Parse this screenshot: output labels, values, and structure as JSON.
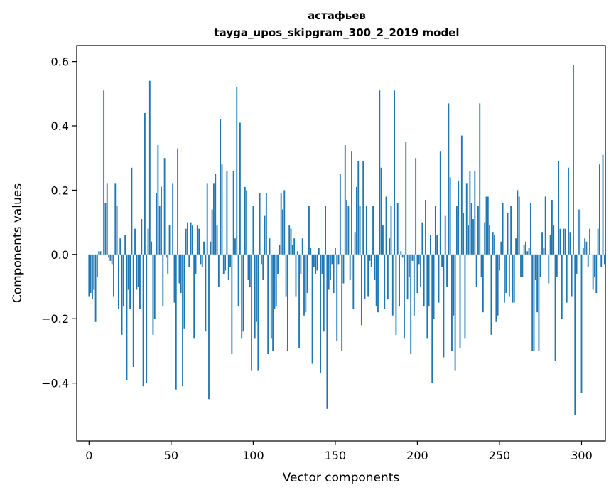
{
  "chart_data": {
    "type": "bar",
    "title": [
      "астафьев",
      "tayga_upos_skipgram_300_2_2019 model"
    ],
    "xlabel": "Vector components",
    "ylabel": "Components values",
    "xlim": [
      -7.5,
      314.5
    ],
    "ylim": [
      -0.58,
      0.65
    ],
    "xticks": [
      0,
      50,
      100,
      150,
      200,
      250,
      300
    ],
    "xtick_labels": [
      "0",
      "50",
      "100",
      "150",
      "200",
      "250",
      "300"
    ],
    "yticks": [
      -0.4,
      -0.2,
      0.0,
      0.2,
      0.4,
      0.6
    ],
    "ytick_labels": [
      "−0.4",
      "−0.2",
      "0.0",
      "0.2",
      "0.4",
      "0.6"
    ],
    "bar_color": "#1f77b4",
    "grid": false,
    "values": [
      -0.13,
      -0.12,
      -0.14,
      -0.11,
      -0.21,
      -0.07,
      0.01,
      0.01,
      0.0,
      0.51,
      0.16,
      0.22,
      -0.01,
      -0.02,
      -0.03,
      -0.13,
      0.22,
      0.15,
      -0.17,
      0.05,
      -0.25,
      -0.16,
      0.06,
      -0.39,
      -0.11,
      -0.17,
      0.27,
      -0.35,
      0.08,
      -0.11,
      -0.1,
      -0.17,
      0.11,
      -0.41,
      0.44,
      -0.4,
      0.08,
      0.54,
      0.04,
      -0.25,
      -0.2,
      0.19,
      0.34,
      0.15,
      0.21,
      -0.16,
      0.3,
      -0.01,
      -0.06,
      0.09,
      0.0,
      0.22,
      -0.15,
      -0.42,
      0.33,
      -0.09,
      -0.12,
      -0.41,
      -0.23,
      0.08,
      0.1,
      -0.04,
      0.1,
      0.09,
      -0.26,
      -0.06,
      0.09,
      0.08,
      -0.03,
      -0.04,
      0.04,
      -0.24,
      0.22,
      -0.45,
      0.04,
      0.14,
      0.22,
      0.25,
      0.09,
      -0.1,
      0.42,
      0.28,
      -0.06,
      -0.05,
      0.26,
      -0.08,
      -0.04,
      -0.31,
      0.26,
      0.05,
      0.52,
      -0.16,
      0.41,
      -0.26,
      -0.24,
      0.21,
      0.2,
      -0.08,
      -0.1,
      -0.36,
      0.15,
      -0.26,
      -0.21,
      -0.36,
      0.19,
      -0.03,
      -0.08,
      0.12,
      0.19,
      -0.31,
      0.05,
      -0.26,
      -0.3,
      -0.17,
      -0.16,
      -0.06,
      0.03,
      0.19,
      0.14,
      0.2,
      -0.13,
      -0.3,
      0.09,
      0.08,
      0.03,
      0.05,
      -0.13,
      0.01,
      -0.29,
      -0.06,
      0.05,
      -0.19,
      -0.18,
      -0.12,
      0.15,
      0.02,
      -0.34,
      -0.04,
      -0.06,
      -0.05,
      0.02,
      -0.37,
      -0.06,
      -0.24,
      0.15,
      -0.48,
      -0.11,
      -0.08,
      -0.03,
      -0.12,
      0.02,
      -0.27,
      -0.03,
      0.25,
      -0.3,
      -0.09,
      0.34,
      0.17,
      0.15,
      -0.08,
      0.32,
      -0.17,
      0.07,
      0.21,
      0.29,
      0.15,
      -0.22,
      0.29,
      -0.14,
      0.15,
      -0.13,
      -0.02,
      -0.04,
      0.15,
      -0.08,
      -0.16,
      -0.18,
      0.51,
      0.27,
      0.09,
      -0.17,
      0.18,
      -0.14,
      0.05,
      0.15,
      -0.19,
      0.51,
      -0.25,
      0.16,
      -0.16,
      0.01,
      -0.01,
      -0.26,
      0.35,
      -0.14,
      -0.07,
      -0.31,
      -0.02,
      -0.19,
      0.3,
      -0.12,
      -0.03,
      -0.1,
      0.1,
      -0.16,
      0.17,
      -0.26,
      -0.16,
      0.06,
      -0.4,
      -0.2,
      0.15,
      0.06,
      -0.15,
      0.32,
      -0.04,
      -0.32,
      0.12,
      -0.1,
      0.47,
      0.24,
      -0.3,
      -0.19,
      -0.36,
      0.15,
      0.23,
      -0.29,
      0.37,
      0.13,
      -0.26,
      0.22,
      0.09,
      0.26,
      0.16,
      0.11,
      0.26,
      -0.1,
      0.15,
      0.47,
      -0.07,
      -0.18,
      0.1,
      0.18,
      0.18,
      0.09,
      -0.25,
      0.07,
      0.06,
      -0.21,
      -0.19,
      -0.05,
      0.04,
      0.16,
      -0.15,
      -0.12,
      0.13,
      -0.13,
      0.15,
      -0.15,
      -0.15,
      0.05,
      0.2,
      0.18,
      -0.07,
      -0.07,
      0.03,
      0.04,
      0.01,
      0.02,
      0.16,
      -0.3,
      -0.3,
      -0.08,
      -0.18,
      -0.3,
      -0.07,
      0.07,
      0.02,
      0.18,
      0.0,
      -0.09,
      0.06,
      0.17,
      0.09,
      -0.33,
      -0.07,
      0.29,
      0.08,
      -0.2,
      0.08,
      0.08,
      -0.15,
      0.27,
      0.07,
      -0.13,
      0.59,
      -0.5,
      -0.06,
      0.14,
      0.14,
      -0.43,
      0.02,
      0.05,
      0.04,
      -0.04,
      0.08,
      0.0,
      -0.11,
      -0.07,
      -0.12,
      0.08,
      0.28,
      -0.04,
      0.31,
      -0.03
    ]
  }
}
